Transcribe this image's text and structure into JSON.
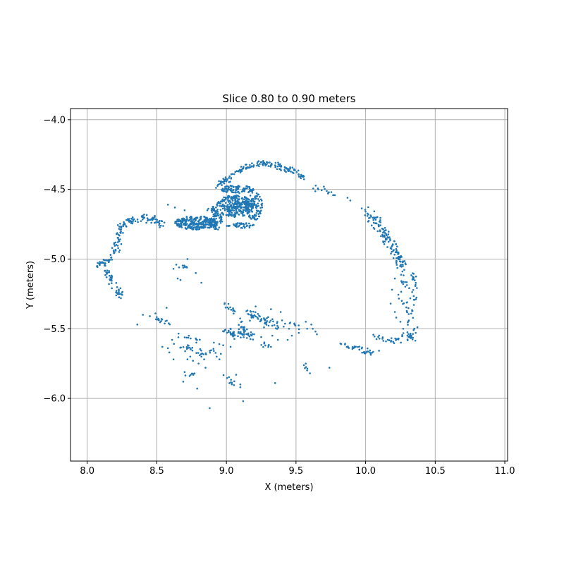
{
  "chart_data": {
    "type": "scatter",
    "title": "Slice 0.80 to 0.90 meters",
    "xlabel": "X (meters)",
    "ylabel": "Y (meters)",
    "xlim": [
      7.88,
      11.02
    ],
    "ylim": [
      -6.45,
      -3.92
    ],
    "xticks": [
      8.0,
      8.5,
      9.0,
      9.5,
      10.0,
      10.5,
      11.0
    ],
    "xtick_labels": [
      "8.0",
      "8.5",
      "9.0",
      "9.5",
      "10.0",
      "10.5",
      "11.0"
    ],
    "yticks": [
      -6.0,
      -5.5,
      -5.0,
      -4.5,
      -4.0
    ],
    "ytick_labels": [
      "−6.0",
      "−5.5",
      "−5.0",
      "−4.5",
      "−4.0"
    ],
    "grid": true,
    "point_color": "#1f77b4",
    "paths": [
      {
        "pts": [
          [
            9.0,
            -4.44
          ],
          [
            9.05,
            -4.38
          ],
          [
            9.12,
            -4.35
          ],
          [
            9.2,
            -4.32
          ],
          [
            9.28,
            -4.31
          ],
          [
            9.36,
            -4.33
          ],
          [
            9.45,
            -4.36
          ],
          [
            9.52,
            -4.39
          ],
          [
            9.56,
            -4.42
          ]
        ],
        "n": 130,
        "spread": 0.012
      },
      {
        "pts": [
          [
            8.94,
            -4.46
          ],
          [
            9.0,
            -4.43
          ]
        ],
        "n": 20,
        "spread": 0.012
      },
      {
        "pts": [
          [
            9.63,
            -4.49
          ],
          [
            9.7,
            -4.51
          ],
          [
            9.78,
            -4.54
          ]
        ],
        "n": 14,
        "spread": 0.008
      },
      {
        "pts": [
          [
            10.0,
            -4.65
          ],
          [
            10.05,
            -4.7
          ],
          [
            10.1,
            -4.77
          ],
          [
            10.16,
            -4.85
          ],
          [
            10.2,
            -4.92
          ],
          [
            10.24,
            -5.0
          ],
          [
            10.28,
            -5.05
          ]
        ],
        "n": 130,
        "spread": 0.018
      },
      {
        "pts": [
          [
            10.33,
            -5.1
          ],
          [
            10.36,
            -5.18
          ],
          [
            10.35,
            -5.28
          ],
          [
            10.33,
            -5.36
          ]
        ],
        "n": 25,
        "spread": 0.012
      },
      {
        "pts": [
          [
            10.25,
            -5.05
          ],
          [
            10.28,
            -5.2
          ],
          [
            10.3,
            -5.35
          ],
          [
            10.32,
            -5.47
          ],
          [
            10.33,
            -5.58
          ]
        ],
        "n": 45,
        "spread": 0.02
      },
      {
        "pts": [
          [
            9.82,
            -5.61
          ],
          [
            9.9,
            -5.63
          ],
          [
            9.97,
            -5.65
          ],
          [
            10.03,
            -5.67
          ],
          [
            10.08,
            -5.66
          ]
        ],
        "n": 40,
        "spread": 0.01
      },
      {
        "pts": [
          [
            10.08,
            -5.56
          ],
          [
            10.12,
            -5.58
          ],
          [
            10.16,
            -5.6
          ],
          [
            10.22,
            -5.58
          ],
          [
            10.28,
            -5.55
          ],
          [
            10.33,
            -5.56
          ]
        ],
        "n": 40,
        "spread": 0.015
      },
      {
        "pts": [
          [
            8.06,
            -5.05
          ],
          [
            8.12,
            -5.03
          ],
          [
            8.16,
            -5.0
          ],
          [
            8.2,
            -4.94
          ],
          [
            8.22,
            -4.85
          ],
          [
            8.24,
            -4.78
          ],
          [
            8.28,
            -4.73
          ],
          [
            8.34,
            -4.71
          ],
          [
            8.4,
            -4.7
          ],
          [
            8.45,
            -4.71
          ],
          [
            8.5,
            -4.73
          ],
          [
            8.54,
            -4.74
          ]
        ],
        "n": 150,
        "spread": 0.014
      },
      {
        "pts": [
          [
            8.13,
            -5.05
          ],
          [
            8.15,
            -5.12
          ],
          [
            8.18,
            -5.18
          ],
          [
            8.22,
            -5.23
          ],
          [
            8.24,
            -5.28
          ]
        ],
        "n": 45,
        "spread": 0.014
      },
      {
        "pts": [
          [
            8.48,
            -5.42
          ],
          [
            8.53,
            -5.44
          ],
          [
            8.58,
            -5.46
          ]
        ],
        "n": 18,
        "spread": 0.008
      },
      {
        "pts": [
          [
            8.66,
            -5.54
          ],
          [
            8.72,
            -5.56
          ],
          [
            8.8,
            -5.58
          ]
        ],
        "n": 10,
        "spread": 0.01
      },
      {
        "pts": [
          [
            8.64,
            -5.61
          ],
          [
            8.7,
            -5.63
          ],
          [
            8.78,
            -5.66
          ],
          [
            8.86,
            -5.69
          ],
          [
            8.92,
            -5.66
          ],
          [
            8.97,
            -5.62
          ]
        ],
        "n": 35,
        "spread": 0.015
      },
      {
        "pts": [
          [
            8.66,
            -5.84
          ],
          [
            8.76,
            -5.82
          ]
        ],
        "n": 8,
        "spread": 0.01
      },
      {
        "pts": [
          [
            8.98,
            -5.32
          ],
          [
            9.02,
            -5.35
          ],
          [
            9.06,
            -5.38
          ]
        ],
        "n": 14,
        "spread": 0.01
      },
      {
        "pts": [
          [
            9.15,
            -5.38
          ],
          [
            9.22,
            -5.42
          ],
          [
            9.28,
            -5.45
          ],
          [
            9.35,
            -5.47
          ],
          [
            9.42,
            -5.48
          ]
        ],
        "n": 55,
        "spread": 0.018
      },
      {
        "pts": [
          [
            8.98,
            -5.51
          ],
          [
            9.05,
            -5.54
          ],
          [
            9.12,
            -5.55
          ],
          [
            9.2,
            -5.54
          ]
        ],
        "n": 50,
        "spread": 0.015
      },
      {
        "pts": [
          [
            9.08,
            -5.42
          ],
          [
            9.11,
            -5.48
          ],
          [
            9.13,
            -5.53
          ]
        ],
        "n": 18,
        "spread": 0.012
      },
      {
        "pts": [
          [
            9.45,
            -5.46
          ],
          [
            9.5,
            -5.48
          ],
          [
            9.54,
            -5.5
          ]
        ],
        "n": 8,
        "spread": 0.01
      },
      {
        "pts": [
          [
            9.27,
            -5.6
          ],
          [
            9.3,
            -5.62
          ],
          [
            9.36,
            -5.64
          ]
        ],
        "n": 7,
        "spread": 0.008
      },
      {
        "pts": [
          [
            9.56,
            -5.77
          ],
          [
            9.58,
            -5.8
          ]
        ],
        "n": 5,
        "spread": 0.008
      },
      {
        "pts": [
          [
            8.99,
            -5.85
          ],
          [
            9.02,
            -5.88
          ],
          [
            9.05,
            -5.89
          ]
        ],
        "n": 10,
        "spread": 0.01
      },
      {
        "pts": [
          [
            8.68,
            -5.04
          ],
          [
            8.72,
            -5.06
          ]
        ],
        "n": 6,
        "spread": 0.008
      }
    ],
    "blobs": [
      {
        "cx": 8.78,
        "cy": -4.74,
        "rx": 0.15,
        "ry": 0.05,
        "n": 240
      },
      {
        "cx": 8.93,
        "cy": -4.73,
        "rx": 0.05,
        "ry": 0.06,
        "n": 60
      },
      {
        "cx": 9.06,
        "cy": -4.62,
        "rx": 0.13,
        "ry": 0.08,
        "n": 290
      },
      {
        "cx": 9.08,
        "cy": -4.5,
        "rx": 0.12,
        "ry": 0.03,
        "n": 90
      },
      {
        "cx": 9.2,
        "cy": -4.62,
        "rx": 0.06,
        "ry": 0.1,
        "n": 100
      },
      {
        "cx": 8.9,
        "cy": -4.65,
        "rx": 0.04,
        "ry": 0.03,
        "n": 25
      },
      {
        "cx": 9.1,
        "cy": -4.76,
        "rx": 0.1,
        "ry": 0.02,
        "n": 40
      }
    ],
    "points": [
      [
        8.58,
        -4.61
      ],
      [
        8.63,
        -4.63
      ],
      [
        8.7,
        -4.65
      ],
      [
        8.36,
        -5.47
      ],
      [
        8.4,
        -5.4
      ],
      [
        8.45,
        -5.41
      ],
      [
        8.54,
        -5.63
      ],
      [
        8.58,
        -5.64
      ],
      [
        8.72,
        -5.72
      ],
      [
        8.74,
        -5.7
      ],
      [
        8.76,
        -5.73
      ],
      [
        8.8,
        -5.75
      ],
      [
        8.82,
        -5.7
      ],
      [
        8.84,
        -5.72
      ],
      [
        8.85,
        -5.78
      ],
      [
        8.93,
        -5.7
      ],
      [
        8.95,
        -5.72
      ],
      [
        9.03,
        -5.63
      ],
      [
        8.69,
        -5.88
      ],
      [
        8.79,
        -5.93
      ],
      [
        8.88,
        -6.07
      ],
      [
        9.12,
        -6.02
      ],
      [
        9.1,
        -5.92
      ],
      [
        9.35,
        -5.89
      ],
      [
        9.44,
        -5.58
      ],
      [
        9.47,
        -5.55
      ],
      [
        9.52,
        -5.53
      ],
      [
        9.58,
        -5.5
      ],
      [
        9.62,
        -5.5
      ],
      [
        9.65,
        -5.54
      ],
      [
        9.74,
        -5.78
      ],
      [
        8.66,
        -5.06
      ],
      [
        8.7,
        -5.05
      ],
      [
        8.72,
        -5.0
      ],
      [
        8.78,
        -5.1
      ],
      [
        8.65,
        -5.14
      ],
      [
        8.67,
        -5.15
      ],
      [
        8.82,
        -5.17
      ],
      [
        8.64,
        -5.04
      ],
      [
        8.62,
        -5.07
      ],
      [
        8.57,
        -5.35
      ],
      [
        8.49,
        -5.39
      ],
      [
        9.87,
        -4.56
      ],
      [
        9.89,
        -4.58
      ],
      [
        9.73,
        -4.53
      ],
      [
        9.66,
        -4.5
      ],
      [
        9.32,
        -5.36
      ],
      [
        9.21,
        -5.34
      ],
      [
        9.18,
        -5.42
      ],
      [
        9.39,
        -5.38
      ],
      [
        9.4,
        -5.44
      ],
      [
        9.27,
        -5.49
      ],
      [
        9.33,
        -5.55
      ],
      [
        9.37,
        -5.58
      ],
      [
        9.25,
        -5.56
      ],
      [
        9.45,
        -5.5
      ],
      [
        9.57,
        -5.45
      ],
      [
        9.61,
        -5.47
      ],
      [
        9.64,
        -5.52
      ],
      [
        9.28,
        -5.62
      ],
      [
        9.32,
        -5.63
      ],
      [
        9.6,
        -5.82
      ],
      [
        9.57,
        -5.75
      ],
      [
        9.07,
        -5.83
      ],
      [
        9.1,
        -5.9
      ],
      [
        8.91,
        -5.6
      ],
      [
        8.96,
        -5.68
      ],
      [
        8.62,
        -5.72
      ],
      [
        8.78,
        -5.57
      ],
      [
        8.73,
        -5.55
      ],
      [
        8.61,
        -5.58
      ],
      [
        8.59,
        -5.67
      ],
      [
        10.22,
        -5.42
      ],
      [
        10.25,
        -5.45
      ],
      [
        10.27,
        -5.5
      ],
      [
        10.3,
        -5.55
      ],
      [
        10.35,
        -5.5
      ],
      [
        10.36,
        -5.53
      ],
      [
        10.18,
        -5.32
      ],
      [
        10.21,
        -5.38
      ],
      [
        10.26,
        -5.3
      ],
      [
        10.19,
        -5.22
      ],
      [
        10.21,
        -5.14
      ],
      [
        10.31,
        -5.44
      ]
    ]
  }
}
